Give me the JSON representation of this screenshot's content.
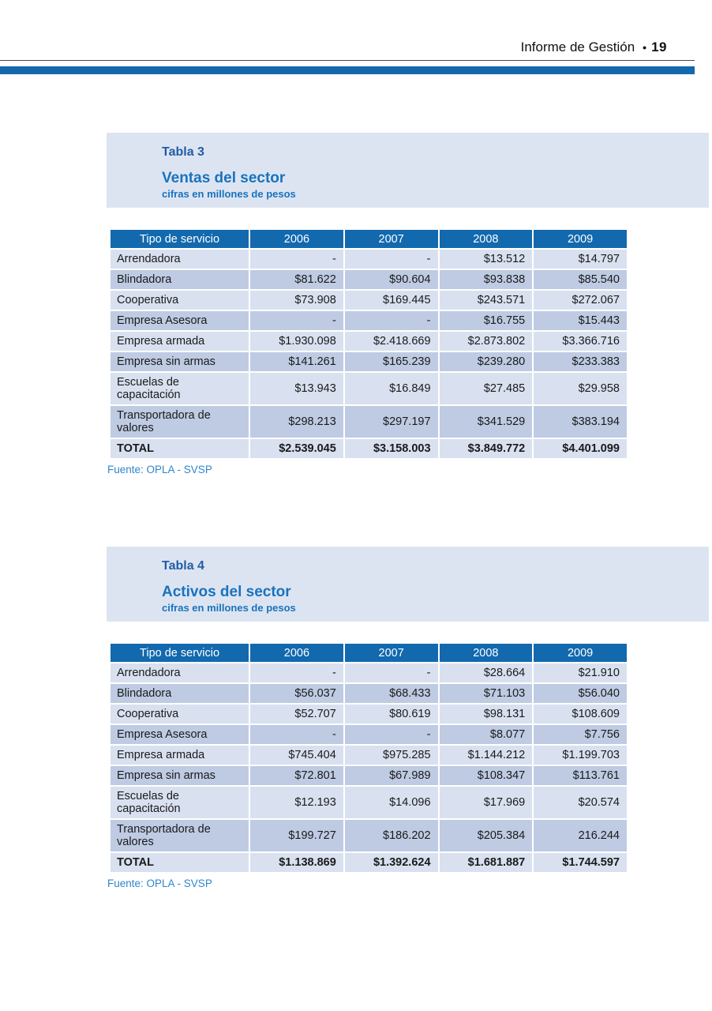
{
  "header": {
    "title": "Informe de Gestión",
    "bullet": "•",
    "page_number": "19"
  },
  "colors": {
    "accent-blue": "#1269AE",
    "band-bg": "#DDE4F1",
    "row-light": "#D9E1F0",
    "row-dark": "#BECBE3",
    "caption-label": "#1F5DA8",
    "caption-title": "#1873BE",
    "source-blue": "#2F86CC",
    "text-dark": "#1A1A1A"
  },
  "tables": [
    {
      "caption": {
        "label": "Tabla 3",
        "title": "Ventas del sector",
        "subtitle": "cifras en millones de pesos"
      },
      "columns": [
        "Tipo de servicio",
        "2006",
        "2007",
        "2008",
        "2009"
      ],
      "rows": [
        [
          "Arrendadora",
          "-",
          "-",
          "$13.512",
          "$14.797"
        ],
        [
          "Blindadora",
          "$81.622",
          "$90.604",
          "$93.838",
          "$85.540"
        ],
        [
          "Cooperativa",
          "$73.908",
          "$169.445",
          "$243.571",
          "$272.067"
        ],
        [
          "Empresa Asesora",
          "-",
          "-",
          "$16.755",
          "$15.443"
        ],
        [
          "Empresa armada",
          "$1.930.098",
          "$2.418.669",
          "$2.873.802",
          "$3.366.716"
        ],
        [
          "Empresa sin armas",
          "$141.261",
          "$165.239",
          "$239.280",
          "$233.383"
        ],
        [
          "Escuelas de capacitación",
          "$13.943",
          "$16.849",
          "$27.485",
          "$29.958"
        ],
        [
          "Transportadora de valores",
          "$298.213",
          "$297.197",
          "$341.529",
          "$383.194"
        ]
      ],
      "total_row": [
        "TOTAL",
        "$2.539.045",
        "$3.158.003",
        "$3.849.772",
        "$4.401.099"
      ],
      "source": "Fuente: OPLA - SVSP"
    },
    {
      "caption": {
        "label": "Tabla 4",
        "title": "Activos del sector",
        "subtitle": "cifras en millones de pesos"
      },
      "columns": [
        "Tipo de servicio",
        "2006",
        "2007",
        "2008",
        "2009"
      ],
      "rows": [
        [
          "Arrendadora",
          "-",
          "-",
          "$28.664",
          "$21.910"
        ],
        [
          "Blindadora",
          "$56.037",
          "$68.433",
          "$71.103",
          "$56.040"
        ],
        [
          "Cooperativa",
          "$52.707",
          "$80.619",
          "$98.131",
          "$108.609"
        ],
        [
          "Empresa Asesora",
          "-",
          "-",
          "$8.077",
          "$7.756"
        ],
        [
          "Empresa armada",
          "$745.404",
          "$975.285",
          "$1.144.212",
          "$1.199.703"
        ],
        [
          "Empresa sin armas",
          "$72.801",
          "$67.989",
          "$108.347",
          "$113.761"
        ],
        [
          "Escuelas de capacitación",
          "$12.193",
          "$14.096",
          "$17.969",
          "$20.574"
        ],
        [
          "Transportadora de valores",
          "$199.727",
          "$186.202",
          "$205.384",
          "216.244"
        ]
      ],
      "total_row": [
        "TOTAL",
        "$1.138.869",
        "$1.392.624",
        "$1.681.887",
        "$1.744.597"
      ],
      "source": "Fuente: OPLA - SVSP"
    }
  ]
}
